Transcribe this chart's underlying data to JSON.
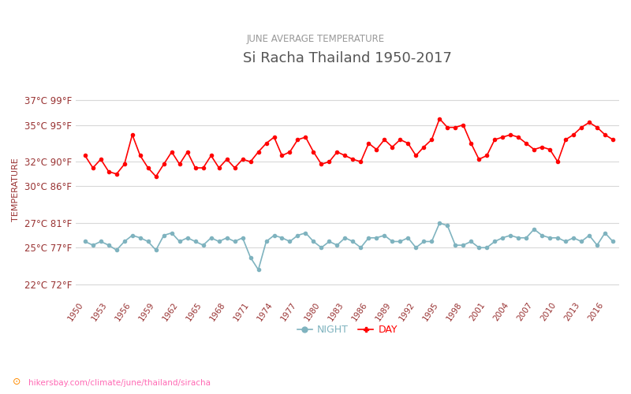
{
  "title": "Si Racha Thailand 1950-2017",
  "subtitle": "JUNE AVERAGE TEMPERATURE",
  "ylabel": "TEMPERATURE",
  "watermark": "hikersbay.com/climate/june/thailand/siracha",
  "years": [
    1950,
    1951,
    1952,
    1953,
    1954,
    1955,
    1956,
    1957,
    1958,
    1959,
    1960,
    1961,
    1962,
    1963,
    1964,
    1965,
    1966,
    1967,
    1968,
    1969,
    1970,
    1971,
    1972,
    1973,
    1974,
    1975,
    1976,
    1977,
    1978,
    1979,
    1980,
    1981,
    1982,
    1983,
    1984,
    1985,
    1986,
    1987,
    1988,
    1989,
    1990,
    1991,
    1992,
    1993,
    1994,
    1995,
    1996,
    1997,
    1998,
    1999,
    2000,
    2001,
    2002,
    2003,
    2004,
    2005,
    2006,
    2007,
    2008,
    2009,
    2010,
    2011,
    2012,
    2013,
    2014,
    2015,
    2016,
    2017
  ],
  "day_temps": [
    32.5,
    31.5,
    32.2,
    31.2,
    31.0,
    31.8,
    34.2,
    32.5,
    31.5,
    30.8,
    31.8,
    32.8,
    31.8,
    32.8,
    31.5,
    31.5,
    32.5,
    31.5,
    32.2,
    31.5,
    32.2,
    32.0,
    32.8,
    33.5,
    34.0,
    32.5,
    32.8,
    33.8,
    34.0,
    32.8,
    31.8,
    32.0,
    32.8,
    32.5,
    32.2,
    32.0,
    33.5,
    33.0,
    33.8,
    33.2,
    33.8,
    33.5,
    32.5,
    33.2,
    33.8,
    35.5,
    34.8,
    34.8,
    35.0,
    33.5,
    32.2,
    32.5,
    33.8,
    34.0,
    34.2,
    34.0,
    33.5,
    33.0,
    33.2,
    33.0,
    32.0,
    33.8,
    34.2,
    34.8,
    35.2,
    34.8,
    34.2,
    33.8
  ],
  "night_temps": [
    25.5,
    25.2,
    25.5,
    25.2,
    24.8,
    25.5,
    26.0,
    25.8,
    25.5,
    24.8,
    26.0,
    26.2,
    25.5,
    25.8,
    25.5,
    25.2,
    25.8,
    25.5,
    25.8,
    25.5,
    25.8,
    24.2,
    23.2,
    25.5,
    26.0,
    25.8,
    25.5,
    26.0,
    26.2,
    25.5,
    25.0,
    25.5,
    25.2,
    25.8,
    25.5,
    25.0,
    25.8,
    25.8,
    26.0,
    25.5,
    25.5,
    25.8,
    25.0,
    25.5,
    25.5,
    27.0,
    26.8,
    25.2,
    25.2,
    25.5,
    25.0,
    25.0,
    25.5,
    25.8,
    26.0,
    25.8,
    25.8,
    26.5,
    26.0,
    25.8,
    25.8,
    25.5,
    25.8,
    25.5,
    26.0,
    25.2,
    26.2,
    25.5
  ],
  "day_color": "#ff0000",
  "night_color": "#7fb3bf",
  "bg_color": "#ffffff",
  "grid_color": "#d8d8d8",
  "title_color": "#555555",
  "subtitle_color": "#999999",
  "ylabel_color": "#993333",
  "tick_color": "#993333",
  "watermark_color": "#ff69b4",
  "watermark_icon_color": "#ff8c00",
  "yticks_c": [
    22,
    25,
    27,
    30,
    32,
    35,
    37
  ],
  "yticks_f": [
    72,
    77,
    81,
    86,
    90,
    95,
    99
  ],
  "ylim": [
    21.0,
    38.5
  ],
  "xlim": [
    1948.8,
    2017.8
  ],
  "legend_night": "NIGHT",
  "legend_day": "DAY"
}
